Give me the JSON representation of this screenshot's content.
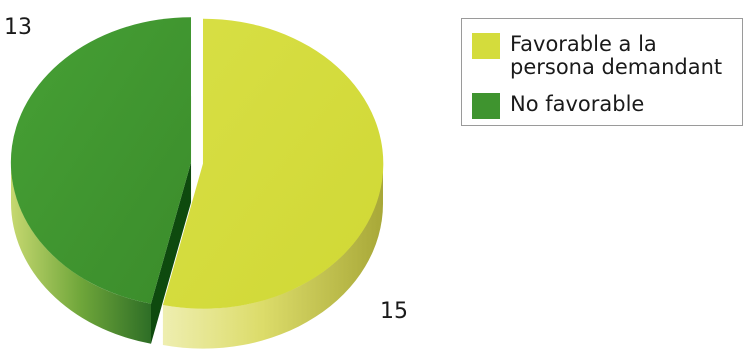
{
  "chart_data": {
    "type": "pie",
    "title": "",
    "categories": [
      "Favorable a la persona demandant",
      "No favorable"
    ],
    "values": [
      15,
      13
    ],
    "colors": [
      "#d4dc3c",
      "#3f942f"
    ],
    "data_labels": [
      "15",
      "13"
    ],
    "legend_position": "top-right"
  }
}
